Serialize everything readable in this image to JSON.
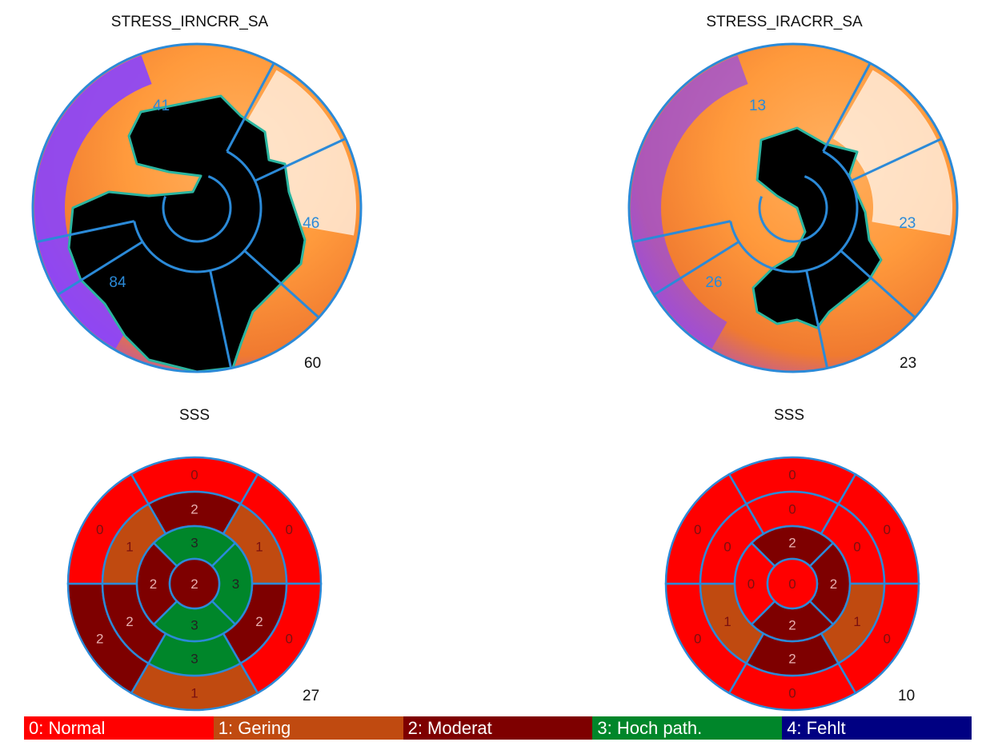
{
  "colors": {
    "outline": "#2b8ad8",
    "score_0": "#ff0000",
    "score_1": "#c04a10",
    "score_2": "#7e0000",
    "score_3": "#00862a",
    "score_4": "#000082",
    "perfusion_high": "#fff6ee",
    "perfusion_mid": "#ff9a3c",
    "perfusion_low": "#8844ff",
    "perfusion_defect": "#000000"
  },
  "panels": [
    {
      "polar_title": "STRESS_IRNCRR_SA",
      "polar_score": "60",
      "region_labels": [
        "41",
        "46",
        "84"
      ],
      "sss_title": "SSS",
      "sss_score": "27",
      "segments": {
        "basal": [
          0,
          0,
          0,
          1,
          2,
          0
        ],
        "mid": [
          2,
          1,
          2,
          3,
          2,
          1
        ],
        "apical": [
          3,
          3,
          3,
          2
        ],
        "apex": 2
      }
    },
    {
      "polar_title": "STRESS_IRACRR_SA",
      "polar_score": "23",
      "region_labels": [
        "13",
        "23",
        "26"
      ],
      "sss_title": "SSS",
      "sss_score": "10",
      "segments": {
        "basal": [
          0,
          0,
          0,
          0,
          0,
          0
        ],
        "mid": [
          0,
          0,
          1,
          2,
          1,
          0
        ],
        "apical": [
          2,
          2,
          2,
          0
        ],
        "apex": 0
      }
    }
  ],
  "legend": [
    {
      "label": "0: Normal",
      "color": "#ff0000"
    },
    {
      "label": "1: Gering",
      "color": "#c04a10"
    },
    {
      "label": "2: Moderat",
      "color": "#7e0000"
    },
    {
      "label": "3: Hoch path.",
      "color": "#00862a"
    },
    {
      "label": "4: Fehlt",
      "color": "#000082"
    }
  ]
}
